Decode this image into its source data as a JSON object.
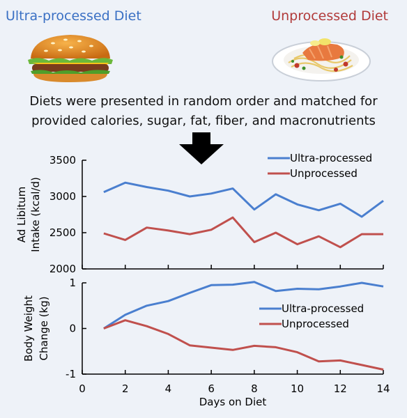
{
  "header": {
    "left_label": "Ultra-processed Diet",
    "right_label": "Unprocessed Diet",
    "left_icon": "burger-icon",
    "right_icon": "salmon-plate-icon",
    "left_color": "#3a70c4",
    "right_color": "#b13a3a"
  },
  "description": {
    "line1": "Diets were presented in random order and matched for",
    "line2": "provided calories, sugar, fat, fiber, and macronutrients"
  },
  "arrow_icon": "down-arrow-icon",
  "chart_data": [
    {
      "type": "line",
      "xlabel": "",
      "ylabel": "Ad Libitum Intake (kcal/d)",
      "ylabel_lines": [
        "Ad Libitum",
        "Intake (kcal/d)"
      ],
      "ylim": [
        2000,
        3500
      ],
      "yticks": [
        2000,
        2500,
        3000,
        3500
      ],
      "xlim": [
        0,
        14
      ],
      "legend_position": "top-right",
      "grid": false,
      "x": [
        1,
        2,
        3,
        4,
        5,
        6,
        7,
        8,
        9,
        10,
        11,
        12,
        13,
        14
      ],
      "series": [
        {
          "name": "Ultra-processed",
          "color": "#4a7fcf",
          "values": [
            3060,
            3190,
            3130,
            3080,
            3000,
            3040,
            3110,
            2820,
            3030,
            2890,
            2810,
            2900,
            2720,
            2940
          ]
        },
        {
          "name": "Unprocessed",
          "color": "#c0504d",
          "values": [
            2490,
            2400,
            2570,
            2530,
            2480,
            2540,
            2710,
            2370,
            2500,
            2340,
            2450,
            2300,
            2480,
            2480
          ]
        }
      ]
    },
    {
      "type": "line",
      "xlabel": "Days on Diet",
      "ylabel": "Body Weight Change (kg)",
      "ylabel_lines": [
        "Body Weight",
        "Change (kg)"
      ],
      "ylim": [
        -1,
        1
      ],
      "yticks": [
        -1,
        0,
        1
      ],
      "xlim": [
        0,
        14
      ],
      "xticks": [
        0,
        2,
        4,
        6,
        8,
        10,
        12,
        14
      ],
      "legend_position": "right",
      "grid": false,
      "x": [
        1,
        2,
        3,
        4,
        5,
        6,
        7,
        8,
        9,
        10,
        11,
        12,
        13,
        14
      ],
      "series": [
        {
          "name": "Ultra-processed",
          "color": "#4a7fcf",
          "values": [
            0,
            0.3,
            0.5,
            0.6,
            0.78,
            0.95,
            0.96,
            1.02,
            0.82,
            0.87,
            0.86,
            0.92,
            1.0,
            0.92
          ]
        },
        {
          "name": "Unprocessed",
          "color": "#c0504d",
          "values": [
            0,
            0.18,
            0.05,
            -0.12,
            -0.37,
            -0.42,
            -0.47,
            -0.38,
            -0.41,
            -0.52,
            -0.72,
            -0.7,
            -0.8,
            -0.9
          ]
        }
      ]
    }
  ]
}
